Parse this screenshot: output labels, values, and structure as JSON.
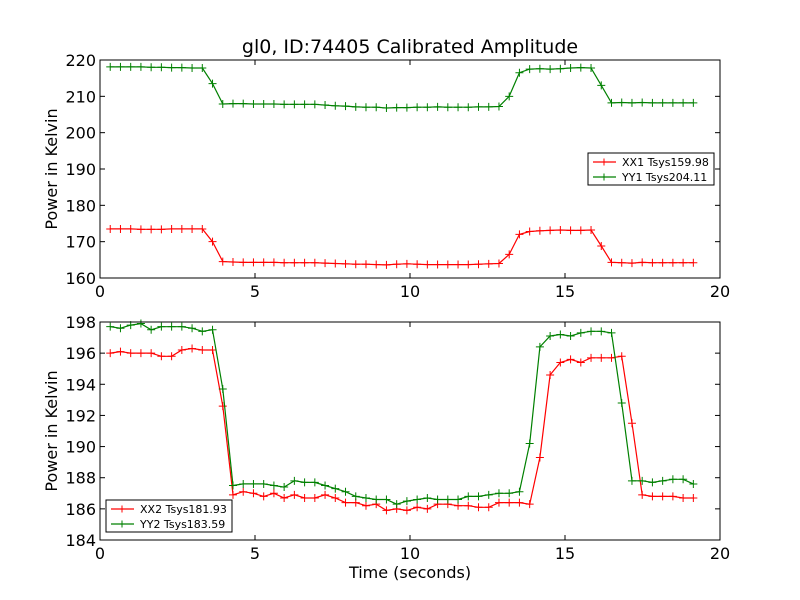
{
  "figure": {
    "title": "gl0, ID:74405 Calibrated Amplitude",
    "xlabel": "Time (seconds)"
  },
  "colors": {
    "red": "#ff0000",
    "green": "#008000"
  },
  "chart_data": [
    {
      "type": "line",
      "ylabel": "Power in Kelvin",
      "xlim": [
        0,
        20
      ],
      "ylim": [
        160,
        220
      ],
      "xticks": [
        0,
        5,
        10,
        15,
        20
      ],
      "yticks": [
        160,
        170,
        180,
        190,
        200,
        210,
        220
      ],
      "grid": false,
      "legend_position": "center-right",
      "x": [
        0.33,
        0.66,
        0.99,
        1.32,
        1.65,
        1.98,
        2.31,
        2.64,
        2.97,
        3.3,
        3.63,
        3.96,
        4.29,
        4.62,
        4.95,
        5.28,
        5.61,
        5.94,
        6.27,
        6.6,
        6.93,
        7.26,
        7.59,
        7.92,
        8.25,
        8.58,
        8.91,
        9.24,
        9.57,
        9.9,
        10.23,
        10.56,
        10.89,
        11.22,
        11.55,
        11.88,
        12.21,
        12.54,
        12.87,
        13.2,
        13.53,
        13.86,
        14.19,
        14.52,
        14.85,
        15.18,
        15.51,
        15.84,
        16.17,
        16.5,
        16.83,
        17.16,
        17.49,
        17.82,
        18.15,
        18.48,
        18.81,
        19.14
      ],
      "series": [
        {
          "name": "XX1 Tsys159.98",
          "color": "#ff0000",
          "values": [
            173.5,
            173.5,
            173.5,
            173.4,
            173.4,
            173.4,
            173.5,
            173.5,
            173.5,
            173.5,
            170.0,
            164.5,
            164.4,
            164.3,
            164.3,
            164.3,
            164.3,
            164.2,
            164.2,
            164.2,
            164.2,
            164.1,
            164.0,
            163.9,
            163.8,
            163.8,
            163.7,
            163.6,
            163.8,
            163.9,
            163.8,
            163.7,
            163.7,
            163.7,
            163.7,
            163.7,
            163.8,
            163.9,
            164.0,
            166.5,
            172.0,
            172.8,
            173.0,
            173.1,
            173.2,
            173.1,
            173.1,
            173.2,
            168.8,
            164.3,
            164.2,
            164.1,
            164.3,
            164.2,
            164.2,
            164.2,
            164.2,
            164.2
          ]
        },
        {
          "name": "YY1 Tsys204.11",
          "color": "#008000",
          "values": [
            218.1,
            218.1,
            218.1,
            218.1,
            218.0,
            218.0,
            217.9,
            217.9,
            217.8,
            217.8,
            213.5,
            207.9,
            208.0,
            208.0,
            207.9,
            207.9,
            207.9,
            207.8,
            207.8,
            207.8,
            207.8,
            207.6,
            207.4,
            207.3,
            207.1,
            207.0,
            207.0,
            206.8,
            206.9,
            206.9,
            207.0,
            207.0,
            207.1,
            207.0,
            207.0,
            207.0,
            207.1,
            207.1,
            207.2,
            210.0,
            216.5,
            217.5,
            217.6,
            217.5,
            217.6,
            217.8,
            217.9,
            217.8,
            213.0,
            208.2,
            208.3,
            208.2,
            208.3,
            208.2,
            208.2,
            208.2,
            208.2,
            208.2
          ]
        }
      ]
    },
    {
      "type": "line",
      "ylabel": "Power in Kelvin",
      "xlabel": "Time (seconds)",
      "xlim": [
        0,
        20
      ],
      "ylim": [
        184,
        198
      ],
      "xticks": [
        0,
        5,
        10,
        15,
        20
      ],
      "yticks": [
        184,
        186,
        188,
        190,
        192,
        194,
        196,
        198
      ],
      "grid": false,
      "legend_position": "lower-left",
      "x": [
        0.33,
        0.66,
        0.99,
        1.32,
        1.65,
        1.98,
        2.31,
        2.64,
        2.97,
        3.3,
        3.63,
        3.96,
        4.29,
        4.62,
        4.95,
        5.28,
        5.61,
        5.94,
        6.27,
        6.6,
        6.93,
        7.26,
        7.59,
        7.92,
        8.25,
        8.58,
        8.91,
        9.24,
        9.57,
        9.9,
        10.23,
        10.56,
        10.89,
        11.22,
        11.55,
        11.88,
        12.21,
        12.54,
        12.87,
        13.2,
        13.53,
        13.86,
        14.19,
        14.52,
        14.85,
        15.18,
        15.51,
        15.84,
        16.17,
        16.5,
        16.83,
        17.16,
        17.49,
        17.82,
        18.15,
        18.48,
        18.81,
        19.14
      ],
      "series": [
        {
          "name": "XX2 Tsys181.93",
          "color": "#ff0000",
          "values": [
            196.0,
            196.1,
            196.0,
            196.0,
            196.0,
            195.8,
            195.8,
            196.2,
            196.3,
            196.2,
            196.2,
            192.6,
            186.9,
            187.1,
            187.0,
            186.8,
            187.0,
            186.7,
            186.9,
            186.7,
            186.7,
            186.9,
            186.7,
            186.4,
            186.4,
            186.2,
            186.3,
            185.9,
            186.0,
            185.9,
            186.1,
            186.0,
            186.3,
            186.3,
            186.2,
            186.2,
            186.1,
            186.1,
            186.4,
            186.4,
            186.4,
            186.3,
            189.3,
            194.6,
            195.4,
            195.6,
            195.4,
            195.7,
            195.7,
            195.7,
            195.8,
            191.5,
            186.9,
            186.8,
            186.8,
            186.8,
            186.7,
            186.7
          ]
        },
        {
          "name": "YY2 Tsys183.59",
          "color": "#008000",
          "values": [
            197.7,
            197.6,
            197.8,
            197.9,
            197.5,
            197.7,
            197.7,
            197.7,
            197.6,
            197.4,
            197.5,
            193.7,
            187.5,
            187.6,
            187.6,
            187.6,
            187.5,
            187.4,
            187.8,
            187.7,
            187.7,
            187.5,
            187.3,
            187.1,
            186.8,
            186.7,
            186.6,
            186.6,
            186.3,
            186.5,
            186.6,
            186.7,
            186.6,
            186.6,
            186.6,
            186.8,
            186.8,
            186.9,
            187.0,
            187.0,
            187.1,
            190.2,
            196.4,
            197.1,
            197.2,
            197.1,
            197.3,
            197.4,
            197.4,
            197.3,
            192.8,
            187.8,
            187.8,
            187.7,
            187.8,
            187.9,
            187.9,
            187.6
          ]
        }
      ]
    }
  ]
}
